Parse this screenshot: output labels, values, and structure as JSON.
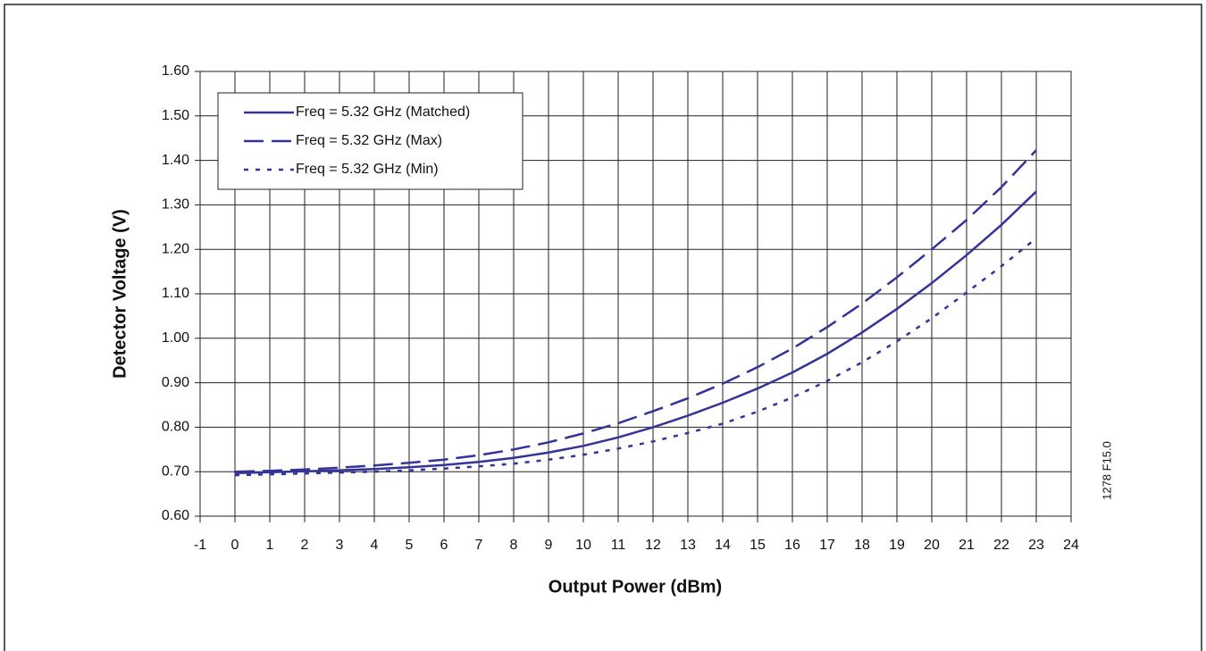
{
  "chart_data": {
    "type": "line",
    "xlabel": "Output Power (dBm)",
    "ylabel": "Detector Voltage (V)",
    "annotation": "1278 F15.0",
    "x": [
      0,
      1,
      2,
      3,
      4,
      5,
      6,
      7,
      8,
      9,
      10,
      11,
      12,
      13,
      14,
      15,
      16,
      17,
      18,
      19,
      20,
      21,
      22,
      23
    ],
    "series": [
      {
        "name": "Freq = 5.32 GHz (Matched)",
        "color": "#333399",
        "dash": "solid",
        "values": [
          0.697,
          0.699,
          0.701,
          0.703,
          0.706,
          0.71,
          0.715,
          0.722,
          0.731,
          0.743,
          0.758,
          0.777,
          0.8,
          0.826,
          0.855,
          0.887,
          0.923,
          0.965,
          1.013,
          1.066,
          1.124,
          1.187,
          1.255,
          1.33
        ]
      },
      {
        "name": "Freq = 5.32 GHz (Max)",
        "color": "#333399",
        "dash": "dashed",
        "values": [
          0.7,
          0.702,
          0.705,
          0.709,
          0.714,
          0.72,
          0.727,
          0.737,
          0.75,
          0.766,
          0.786,
          0.809,
          0.836,
          0.865,
          0.898,
          0.935,
          0.977,
          1.025,
          1.078,
          1.137,
          1.2,
          1.266,
          1.34,
          1.423
        ]
      },
      {
        "name": "Freq = 5.32 GHz (Min)",
        "color": "#333399",
        "dash": "dotted",
        "values": [
          0.692,
          0.694,
          0.696,
          0.698,
          0.7,
          0.703,
          0.707,
          0.712,
          0.718,
          0.727,
          0.738,
          0.752,
          0.768,
          0.787,
          0.808,
          0.835,
          0.867,
          0.904,
          0.946,
          0.993,
          1.045,
          1.103,
          1.162,
          1.225
        ]
      }
    ],
    "xlim": [
      -1,
      24
    ],
    "xticks": [
      -1,
      0,
      1,
      2,
      3,
      4,
      5,
      6,
      7,
      8,
      9,
      10,
      11,
      12,
      13,
      14,
      15,
      16,
      17,
      18,
      19,
      20,
      21,
      22,
      23,
      24
    ],
    "ylim": [
      0.6,
      1.6
    ],
    "yticks": [
      {
        "value": 0.6,
        "label": "0.60"
      },
      {
        "value": 0.7,
        "label": "0.70"
      },
      {
        "value": 0.8,
        "label": "0.80"
      },
      {
        "value": 0.9,
        "label": "0.90"
      },
      {
        "value": 1.0,
        "label": "1.00"
      },
      {
        "value": 1.1,
        "label": "1.10"
      },
      {
        "value": 1.2,
        "label": "1.20"
      },
      {
        "value": 1.3,
        "label": "1.30"
      },
      {
        "value": 1.4,
        "label": "1.40"
      },
      {
        "value": 1.5,
        "label": "1.50"
      },
      {
        "value": 1.6,
        "label": "1.60"
      }
    ],
    "grid": true,
    "legend": "upper left"
  }
}
